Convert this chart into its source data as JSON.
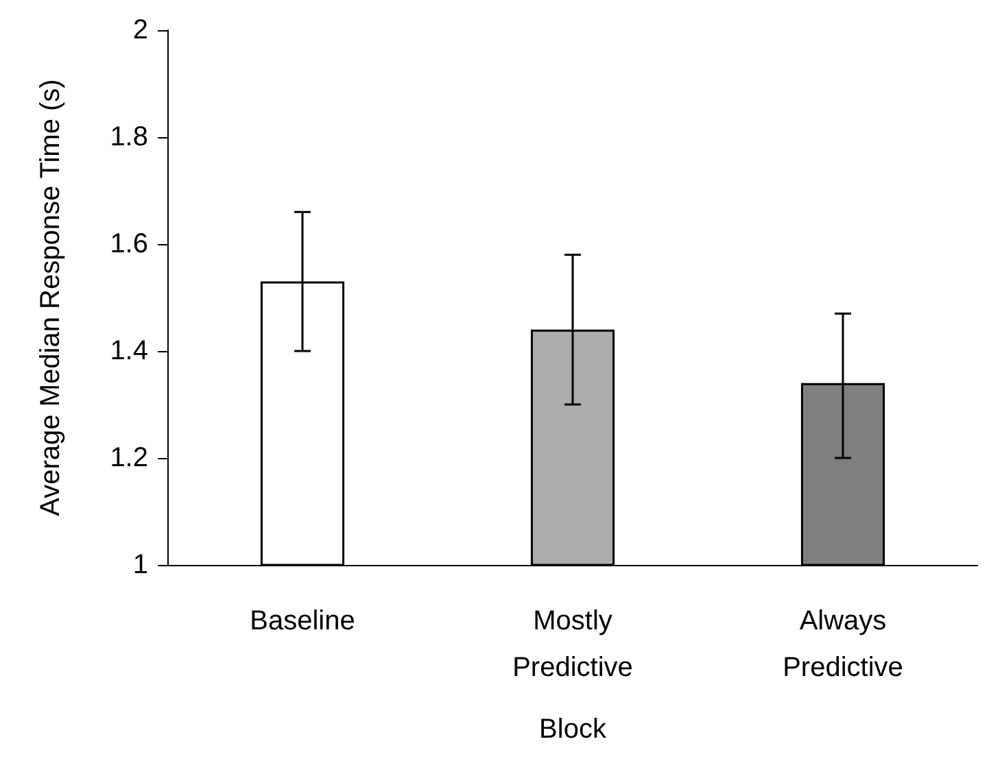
{
  "chart_data": {
    "type": "bar",
    "xlabel": "Block",
    "ylabel": "Average Median Response Time (s)",
    "categories": [
      "Baseline",
      "Mostly\nPredictive",
      "Always\nPredictive"
    ],
    "values": [
      1.53,
      1.44,
      1.34
    ],
    "colors": [
      "#ffffff",
      "#aeabab",
      "#7f7f7f"
    ],
    "errors": [
      [
        1.4,
        1.66
      ],
      [
        1.3,
        1.58
      ],
      [
        1.2,
        1.47
      ]
    ],
    "ylim": [
      1,
      2
    ],
    "yticks": [
      1,
      1.2,
      1.4,
      1.6,
      1.8,
      2
    ],
    "grid": false
  }
}
